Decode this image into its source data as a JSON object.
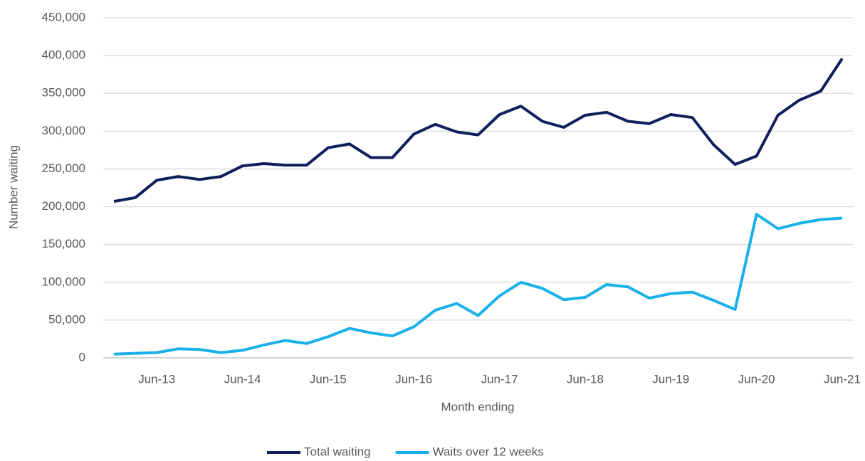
{
  "chart_data": {
    "type": "line",
    "xlabel": "Month ending",
    "ylabel": "Number waiting",
    "categories": [
      null,
      null,
      "Jun-13",
      null,
      null,
      null,
      "Jun-14",
      null,
      null,
      null,
      "Jun-15",
      null,
      null,
      null,
      "Jun-16",
      null,
      null,
      null,
      "Jun-17",
      null,
      null,
      null,
      "Jun-18",
      null,
      null,
      null,
      "Jun-19",
      null,
      null,
      null,
      "Jun-20",
      null,
      null,
      null,
      "Jun-21"
    ],
    "series": [
      {
        "name": "Total waiting",
        "color": "#0f1f5c",
        "values": [
          207000,
          212000,
          235000,
          240000,
          236000,
          240000,
          254000,
          257000,
          255000,
          255000,
          278000,
          283000,
          265000,
          265000,
          296000,
          309000,
          299000,
          295000,
          322000,
          333000,
          313000,
          305000,
          321000,
          325000,
          313000,
          310000,
          322000,
          318000,
          282000,
          256000,
          267000,
          321000,
          341000,
          353000,
          396000
        ]
      },
      {
        "name": "Waits over 12 weeks",
        "color": "#1ab1ea",
        "values": [
          5000,
          6000,
          7000,
          12000,
          11000,
          7000,
          10000,
          17000,
          23000,
          19000,
          28000,
          39000,
          33000,
          29000,
          41000,
          63000,
          72000,
          56000,
          82000,
          100000,
          92000,
          77000,
          80000,
          97000,
          94000,
          79000,
          85000,
          87000,
          76000,
          64000,
          190000,
          171000,
          178000,
          183000,
          185000
        ]
      }
    ],
    "ylim": [
      0,
      450000
    ],
    "yticks": [
      0,
      {
        "value": 50000,
        "label": "50,000"
      },
      {
        "value": 100000,
        "label": "100,000"
      },
      {
        "value": 150000,
        "label": "150,000"
      },
      {
        "value": 200000,
        "label": "200,000"
      },
      {
        "value": 250000,
        "label": "250,000"
      },
      {
        "value": 300000,
        "label": "300,000"
      },
      {
        "value": 350000,
        "label": "350,000"
      },
      {
        "value": 400000,
        "label": "400,000"
      },
      {
        "value": 450000,
        "label": "450,000"
      }
    ],
    "grid": true,
    "legend": "bottom"
  }
}
